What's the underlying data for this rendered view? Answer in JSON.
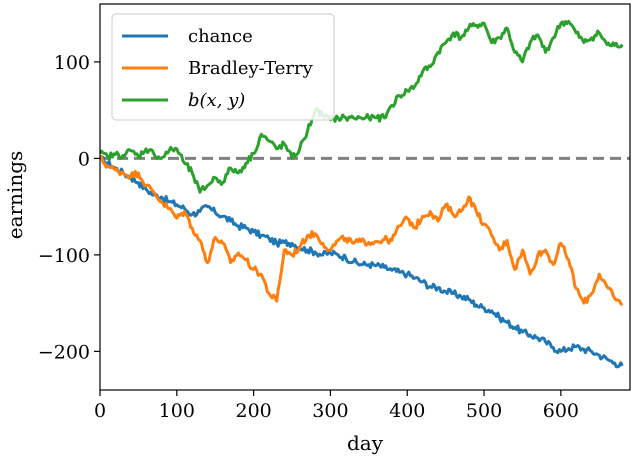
{
  "chart_data": {
    "type": "line",
    "title": "",
    "xlabel": "day",
    "ylabel": "earnings",
    "xlim": [
      0,
      690
    ],
    "ylim": [
      -240,
      160
    ],
    "xticks": [
      0,
      100,
      200,
      300,
      400,
      500,
      600
    ],
    "xtick_labels": [
      "0",
      "100",
      "200",
      "300",
      "400",
      "500",
      "600"
    ],
    "yticks": [
      -200,
      -100,
      0,
      100
    ],
    "ytick_labels": [
      "−200",
      "−100",
      "0",
      "100"
    ],
    "grid": false,
    "legend": {
      "position": "top-left"
    },
    "reference_line": {
      "y": 0,
      "style": "dashed",
      "color": "#7f7f7f"
    },
    "series": [
      {
        "name": "chance",
        "color": "#1f77b4",
        "x": [
          0,
          10,
          20,
          30,
          40,
          50,
          60,
          70,
          80,
          90,
          100,
          110,
          120,
          130,
          140,
          150,
          160,
          170,
          180,
          190,
          200,
          210,
          220,
          230,
          240,
          250,
          260,
          270,
          280,
          290,
          300,
          310,
          320,
          330,
          340,
          350,
          360,
          370,
          380,
          390,
          400,
          410,
          420,
          430,
          440,
          450,
          460,
          470,
          480,
          490,
          500,
          510,
          520,
          530,
          540,
          550,
          560,
          570,
          580,
          590,
          600,
          610,
          620,
          630,
          640,
          650,
          660,
          670,
          680
        ],
        "y": [
          0,
          -5,
          -10,
          -15,
          -20,
          -25,
          -32,
          -38,
          -40,
          -45,
          -48,
          -52,
          -58,
          -55,
          -50,
          -56,
          -60,
          -65,
          -70,
          -72,
          -76,
          -80,
          -83,
          -88,
          -87,
          -88,
          -92,
          -95,
          -97,
          -100,
          -98,
          -100,
          -103,
          -107,
          -110,
          -110,
          -111,
          -113,
          -116,
          -118,
          -120,
          -124,
          -128,
          -133,
          -134,
          -138,
          -140,
          -143,
          -146,
          -152,
          -155,
          -158,
          -165,
          -170,
          -175,
          -180,
          -183,
          -186,
          -190,
          -196,
          -200,
          -197,
          -195,
          -198,
          -200,
          -204,
          -208,
          -212,
          -215
        ]
      },
      {
        "name": "Bradley-Terry",
        "color": "#ff7f0e",
        "x": [
          0,
          10,
          20,
          30,
          40,
          50,
          60,
          70,
          80,
          90,
          100,
          110,
          120,
          130,
          140,
          150,
          160,
          170,
          180,
          190,
          200,
          210,
          220,
          230,
          240,
          250,
          260,
          270,
          280,
          290,
          300,
          310,
          320,
          330,
          340,
          350,
          360,
          370,
          380,
          390,
          400,
          410,
          420,
          430,
          440,
          450,
          460,
          470,
          480,
          490,
          500,
          510,
          520,
          530,
          540,
          550,
          560,
          570,
          580,
          590,
          600,
          610,
          620,
          630,
          640,
          650,
          660,
          670,
          680
        ],
        "y": [
          0,
          -8,
          -12,
          -15,
          -18,
          -15,
          -28,
          -35,
          -45,
          -52,
          -62,
          -55,
          -72,
          -85,
          -108,
          -82,
          -88,
          -108,
          -98,
          -105,
          -115,
          -120,
          -140,
          -148,
          -95,
          -100,
          -92,
          -80,
          -78,
          -88,
          -95,
          -85,
          -83,
          -88,
          -86,
          -87,
          -86,
          -84,
          -85,
          -70,
          -62,
          -72,
          -60,
          -55,
          -65,
          -48,
          -58,
          -55,
          -40,
          -55,
          -68,
          -80,
          -95,
          -85,
          -115,
          -95,
          -120,
          -100,
          -95,
          -110,
          -88,
          -105,
          -135,
          -150,
          -140,
          -120,
          -133,
          -145,
          -152
        ]
      },
      {
        "name": "b(x, y)",
        "color": "#2ca02c",
        "x": [
          0,
          10,
          20,
          30,
          40,
          50,
          60,
          70,
          80,
          90,
          100,
          110,
          120,
          130,
          140,
          150,
          160,
          170,
          180,
          190,
          200,
          210,
          220,
          230,
          240,
          250,
          260,
          270,
          280,
          290,
          300,
          310,
          320,
          330,
          340,
          350,
          360,
          370,
          380,
          390,
          400,
          410,
          420,
          430,
          440,
          450,
          460,
          470,
          480,
          490,
          500,
          510,
          520,
          530,
          540,
          550,
          560,
          570,
          580,
          590,
          600,
          610,
          620,
          630,
          640,
          650,
          660,
          670,
          680
        ],
        "y": [
          5,
          2,
          4,
          3,
          8,
          2,
          10,
          5,
          0,
          8,
          10,
          -5,
          -15,
          -35,
          -28,
          -20,
          -25,
          -10,
          -15,
          -5,
          5,
          25,
          18,
          10,
          15,
          0,
          10,
          28,
          50,
          45,
          40,
          42,
          42,
          42,
          42,
          42,
          42,
          42,
          55,
          65,
          70,
          75,
          90,
          95,
          110,
          120,
          130,
          125,
          135,
          138,
          140,
          120,
          125,
          135,
          110,
          100,
          120,
          128,
          110,
          125,
          140,
          142,
          130,
          120,
          125,
          130,
          118,
          117,
          118
        ]
      }
    ]
  }
}
